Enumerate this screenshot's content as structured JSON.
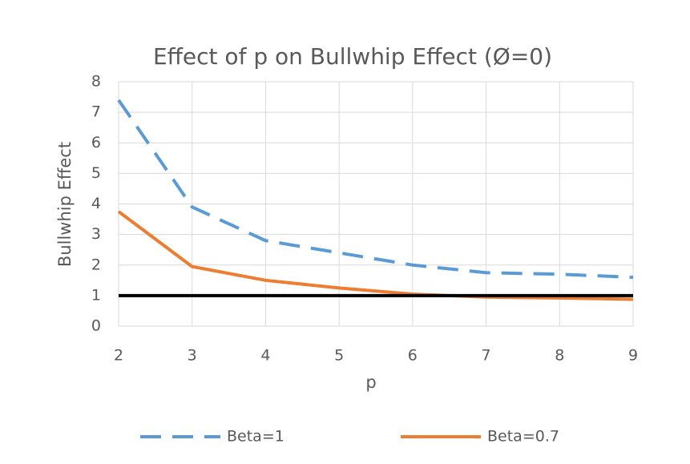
{
  "chart_data": {
    "type": "line",
    "title": "Effect of p on Bullwhip Effect (Ø=0)",
    "x_label": "p",
    "y_label": "Bullwhip Effect",
    "x": [
      2,
      3,
      4,
      5,
      6,
      7,
      8,
      9
    ],
    "series": [
      {
        "name": "Beta=1",
        "color": "#5b9bd5",
        "dashed": true,
        "values": [
          7.4,
          3.9,
          2.8,
          2.4,
          2.0,
          1.75,
          1.7,
          1.6
        ]
      },
      {
        "name": "Beta=0.7",
        "color": "#ed7d31",
        "dashed": false,
        "values": [
          3.75,
          1.95,
          1.5,
          1.25,
          1.05,
          0.95,
          0.92,
          0.88
        ]
      },
      {
        "color": "#000000",
        "dashed": false,
        "values": [
          1,
          1,
          1,
          1,
          1,
          1,
          1,
          1
        ]
      }
    ],
    "xlim": [
      2,
      9
    ],
    "xticks": [
      2,
      3,
      4,
      5,
      6,
      7,
      8,
      9
    ],
    "ylim": [
      0,
      8
    ],
    "yticks": [
      0,
      1,
      2,
      3,
      4,
      5,
      6,
      7,
      8
    ],
    "grid": true,
    "legend": "bottom"
  }
}
